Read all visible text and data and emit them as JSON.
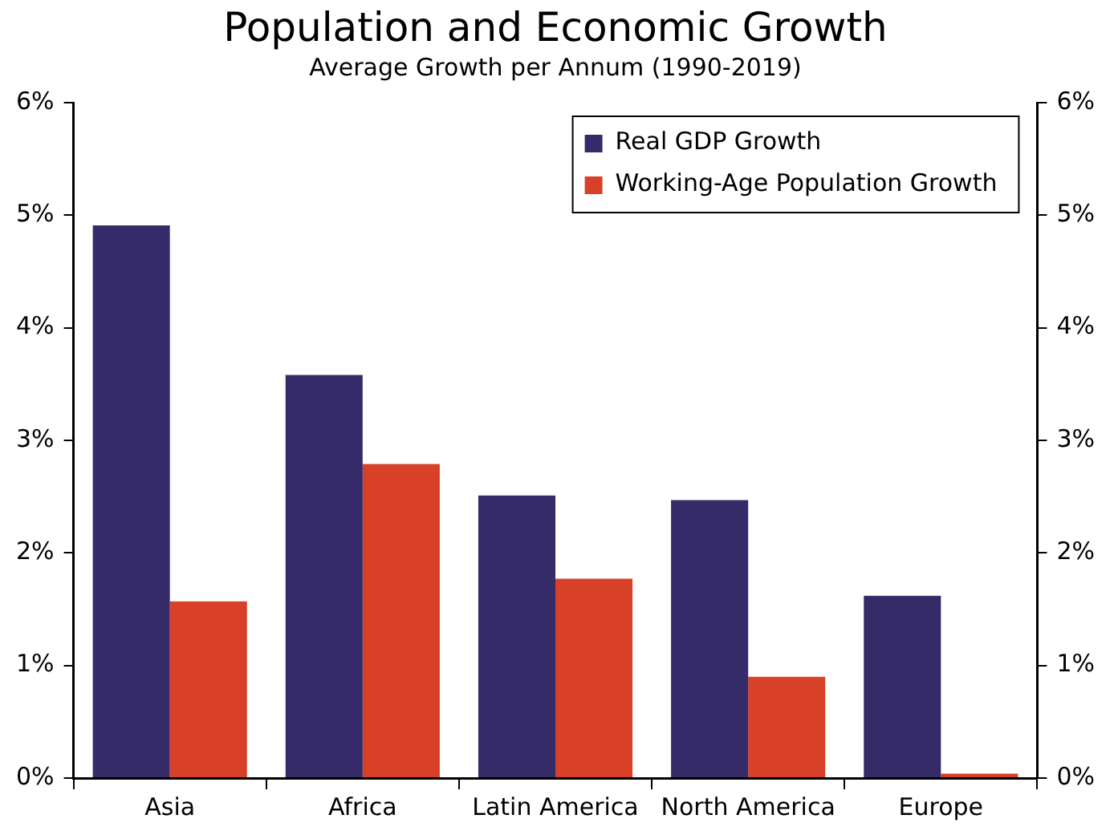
{
  "chart_data": {
    "type": "bar",
    "title": "Population and Economic Growth",
    "subtitle": "Average Growth per Annum (1990-2019)",
    "categories": [
      "Asia",
      "Africa",
      "Latin America",
      "North America",
      "Europe"
    ],
    "series": [
      {
        "name": "Real GDP Growth",
        "color": "#352b69",
        "values": [
          4.91,
          3.58,
          2.51,
          2.47,
          1.62
        ]
      },
      {
        "name": "Working-Age Population Growth",
        "color": "#d84027",
        "values": [
          1.57,
          2.79,
          1.77,
          0.9,
          0.04
        ]
      }
    ],
    "ylim": [
      0,
      6
    ],
    "yticks": [
      {
        "value": 0,
        "label": "0%"
      },
      {
        "value": 1,
        "label": "1%"
      },
      {
        "value": 2,
        "label": "2%"
      },
      {
        "value": 3,
        "label": "3%"
      },
      {
        "value": 4,
        "label": "4%"
      },
      {
        "value": 5,
        "label": "5%"
      },
      {
        "value": 6,
        "label": "6%"
      }
    ],
    "y2lim": [
      0,
      6
    ],
    "y2ticks": [
      {
        "value": 0,
        "label": "0%"
      },
      {
        "value": 1,
        "label": "1%"
      },
      {
        "value": 2,
        "label": "2%"
      },
      {
        "value": 3,
        "label": "3%"
      },
      {
        "value": 4,
        "label": "4%"
      },
      {
        "value": 5,
        "label": "5%"
      },
      {
        "value": 6,
        "label": "6%"
      }
    ],
    "grid": false,
    "legend": "top right"
  }
}
